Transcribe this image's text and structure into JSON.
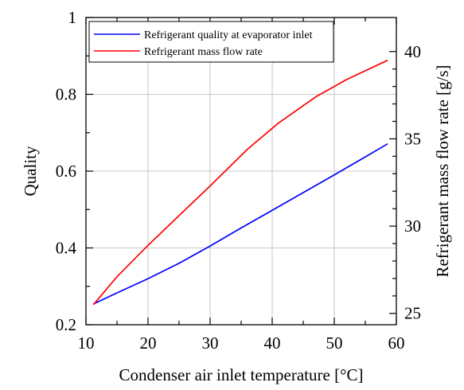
{
  "chart_data": {
    "type": "line",
    "xlabel": "Condenser air inlet temperature [°C]",
    "ylabel": "Quality",
    "y2label": "Refrigerant mass flow rate [g/s]",
    "xlim": [
      10,
      60
    ],
    "ylim": [
      0.2,
      1.0
    ],
    "y2lim": [
      24.35,
      41.95
    ],
    "x_ticks": [
      10,
      20,
      30,
      40,
      50,
      60
    ],
    "y_ticks": [
      0.2,
      0.4,
      0.6,
      0.8,
      1.0
    ],
    "y_tick_labels": [
      "0.2",
      "0.4",
      "0.6",
      "0.8",
      "1"
    ],
    "y2_ticks": [
      25,
      30,
      35,
      40
    ],
    "grid": true,
    "legend_position": "top-left",
    "series": [
      {
        "name": "Refrigerant quality at evaporator inlet",
        "axis": "left",
        "color": "#0000ff",
        "x": [
          11.2,
          15,
          20,
          25,
          30,
          35,
          40,
          45,
          50,
          55,
          58.6
        ],
        "y": [
          0.254,
          0.283,
          0.32,
          0.36,
          0.405,
          0.452,
          0.498,
          0.544,
          0.59,
          0.637,
          0.671
        ]
      },
      {
        "name": "Refrigerant mass flow rate",
        "axis": "right",
        "color": "#ff0000",
        "x": [
          11.2,
          15,
          20,
          25,
          30,
          36,
          41,
          47,
          52,
          58.6
        ],
        "y": [
          25.5,
          27.1,
          28.9,
          30.6,
          32.3,
          34.4,
          35.9,
          37.4,
          38.4,
          39.5
        ]
      }
    ]
  }
}
